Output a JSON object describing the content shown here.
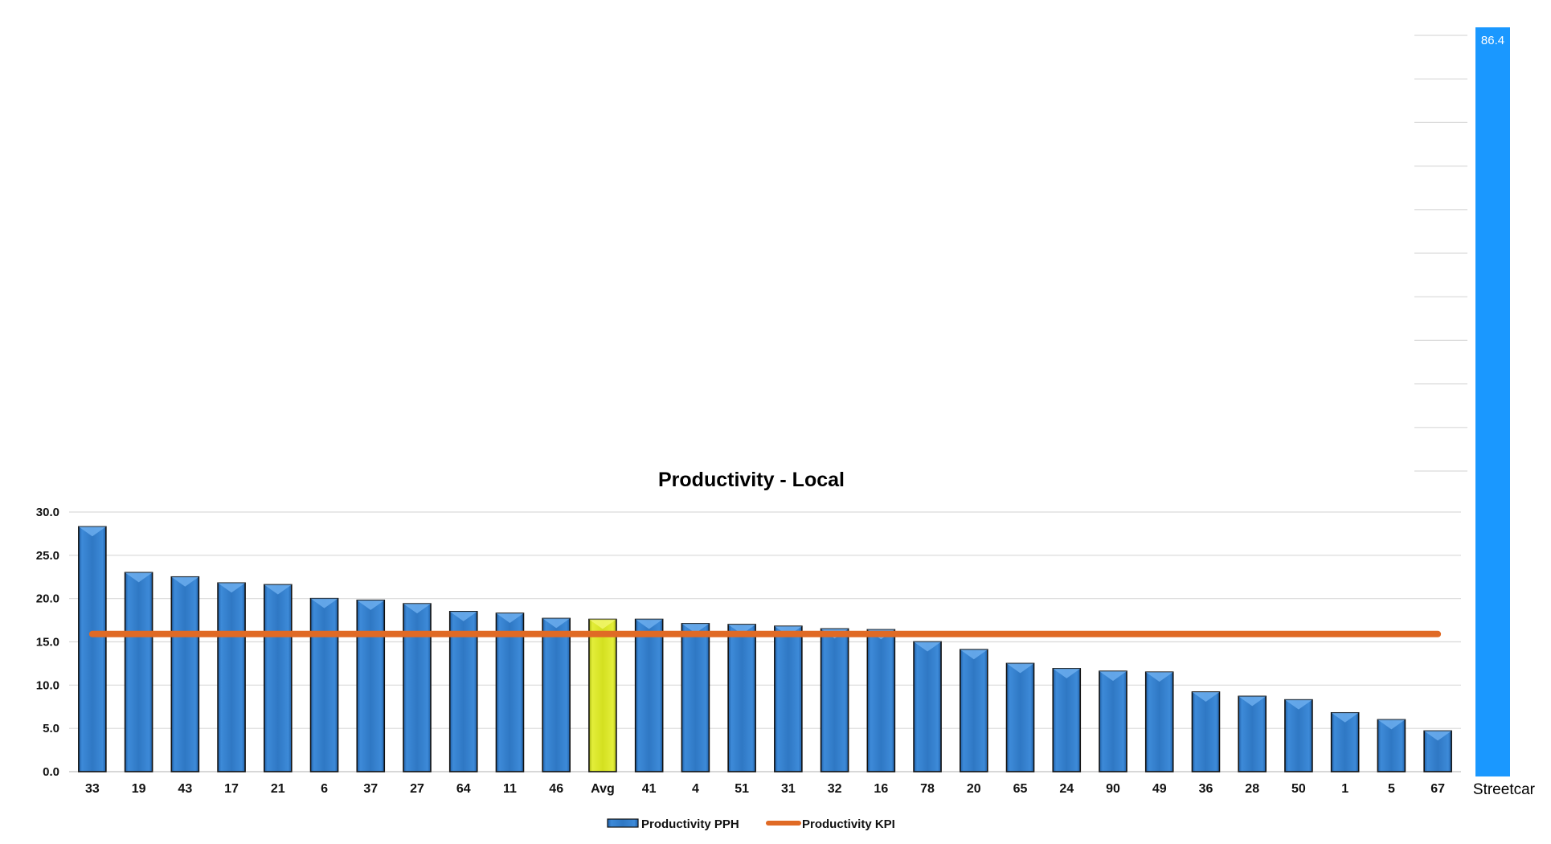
{
  "chart_data": {
    "type": "bar",
    "title": "Productivity - Local",
    "xlabel": "",
    "ylabel": "",
    "ylim": [
      0,
      30
    ],
    "yticks": [
      "0.0",
      "5.0",
      "10.0",
      "15.0",
      "20.0",
      "25.0",
      "30.0"
    ],
    "grid": true,
    "legend_position": "bottom",
    "categories": [
      "33",
      "19",
      "43",
      "17",
      "21",
      "6",
      "37",
      "27",
      "64",
      "11",
      "46",
      "Avg",
      "41",
      "4",
      "51",
      "31",
      "32",
      "16",
      "78",
      "20",
      "65",
      "24",
      "90",
      "49",
      "36",
      "28",
      "50",
      "1",
      "5",
      "67"
    ],
    "series": [
      {
        "name": "Productivity PPH",
        "type": "bar",
        "color": "#2f78c4",
        "highlight": {
          "category": "Avg",
          "color": "#d4e020"
        },
        "values": [
          28.3,
          23.0,
          22.5,
          21.8,
          21.6,
          20.0,
          19.8,
          19.4,
          18.5,
          18.3,
          17.7,
          17.6,
          17.6,
          17.1,
          17.0,
          16.8,
          16.5,
          16.4,
          15.0,
          14.1,
          12.5,
          11.9,
          11.6,
          11.5,
          9.2,
          8.7,
          8.3,
          6.8,
          6.0,
          4.7
        ]
      },
      {
        "name": "Productivity KPI",
        "type": "line",
        "color": "#e06a25",
        "values": [
          15.9,
          15.9,
          15.9,
          15.9,
          15.9,
          15.9,
          15.9,
          15.9,
          15.9,
          15.9,
          15.9,
          15.9,
          15.9,
          15.9,
          15.9,
          15.9,
          15.9,
          15.9,
          15.9,
          15.9,
          15.9,
          15.9,
          15.9,
          15.9,
          15.9,
          15.9,
          15.9,
          15.9,
          15.9,
          15.9
        ]
      }
    ]
  },
  "streetcar": {
    "label": "Streetcar",
    "value": 86.4,
    "value_label": "86.4",
    "color": "#1a98ff"
  }
}
